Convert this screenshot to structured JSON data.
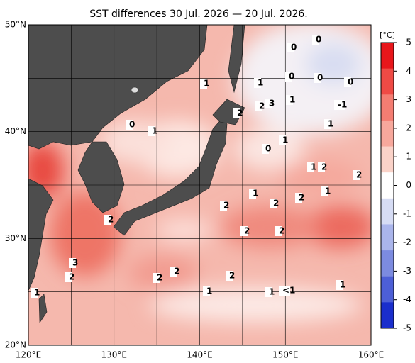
{
  "title": "SST differences 30 Jul. 2026 — 20 Jul. 2026.",
  "x_axis": {
    "ticks": [
      {
        "value": 120,
        "label": "120°E"
      },
      {
        "value": 130,
        "label": "130°E"
      },
      {
        "value": 140,
        "label": "140°E"
      },
      {
        "value": 150,
        "label": "150°E"
      },
      {
        "value": 160,
        "label": "160°E"
      }
    ]
  },
  "y_axis": {
    "ticks": [
      {
        "value": 20,
        "label": "20°N"
      },
      {
        "value": 30,
        "label": "30°N"
      },
      {
        "value": 40,
        "label": "40°N"
      },
      {
        "value": 50,
        "label": "50°N"
      }
    ]
  },
  "colorbar": {
    "unit": "[°C]",
    "ticks": [
      5,
      4,
      3,
      2,
      1,
      0,
      -1,
      -2,
      -3,
      -4,
      -5
    ],
    "colors": [
      "#e8161b",
      "#ef4a45",
      "#f47d72",
      "#f7a89c",
      "#fad2c8",
      "#ffffff",
      "#d6dcf4",
      "#aab5eb",
      "#7c8be0",
      "#4d5fd6",
      "#1a2ecc"
    ]
  },
  "contour_labels": [
    "0",
    "0",
    "0",
    "0",
    "0",
    "1",
    "1",
    "2",
    "3",
    "1",
    "-1",
    "2",
    "0",
    "1",
    "1",
    "0",
    "1",
    "1",
    "2",
    "2",
    "1",
    "1",
    "2",
    "2",
    "2",
    "2",
    "2",
    "2",
    "3",
    "2",
    "2",
    "2",
    "2",
    "1",
    "1",
    "<1",
    "1",
    "1"
  ]
}
